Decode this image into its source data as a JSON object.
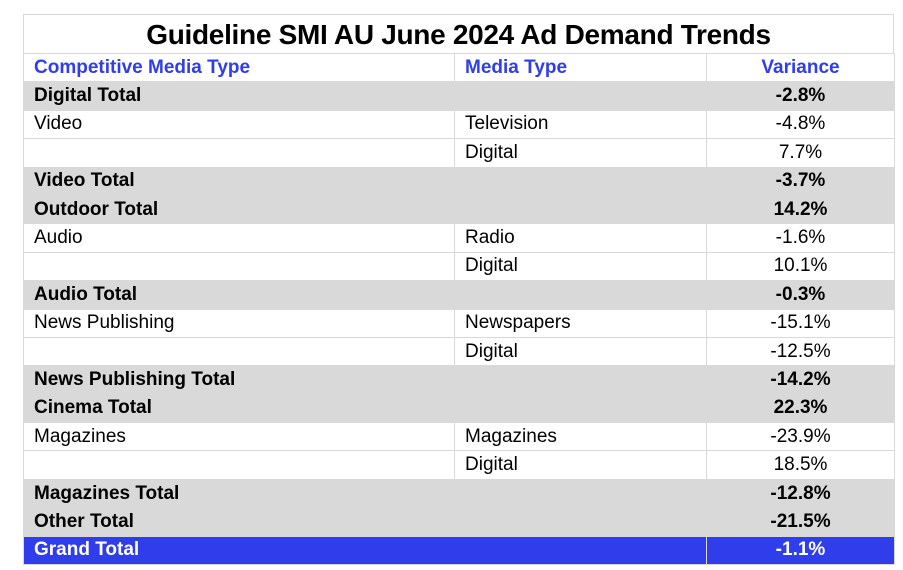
{
  "chart_data": {
    "type": "table",
    "title": "Guideline SMI AU June 2024 Ad Demand Trends",
    "columns": [
      "Competitive Media Type",
      "Media Type",
      "Variance"
    ],
    "rows": [
      {
        "kind": "total",
        "cmt": "Digital Total",
        "mt": "",
        "variance": "-2.8%"
      },
      {
        "kind": "row",
        "cmt": "Video",
        "mt": "Television",
        "variance": "-4.8%"
      },
      {
        "kind": "row",
        "cmt": "",
        "mt": "Digital",
        "variance": "7.7%"
      },
      {
        "kind": "total",
        "cmt": "Video Total",
        "mt": "",
        "variance": "-3.7%"
      },
      {
        "kind": "total",
        "cmt": "Outdoor Total",
        "mt": "",
        "variance": "14.2%"
      },
      {
        "kind": "row",
        "cmt": "Audio",
        "mt": "Radio",
        "variance": "-1.6%"
      },
      {
        "kind": "row",
        "cmt": "",
        "mt": "Digital",
        "variance": "10.1%"
      },
      {
        "kind": "total",
        "cmt": "Audio Total",
        "mt": "",
        "variance": "-0.3%"
      },
      {
        "kind": "row",
        "cmt": "News Publishing",
        "mt": "Newspapers",
        "variance": "-15.1%"
      },
      {
        "kind": "row",
        "cmt": "",
        "mt": "Digital",
        "variance": "-12.5%"
      },
      {
        "kind": "total",
        "cmt": "News Publishing Total",
        "mt": "",
        "variance": "-14.2%"
      },
      {
        "kind": "total",
        "cmt": "Cinema Total",
        "mt": "",
        "variance": "22.3%"
      },
      {
        "kind": "row",
        "cmt": "Magazines",
        "mt": "Magazines",
        "variance": "-23.9%"
      },
      {
        "kind": "row",
        "cmt": "",
        "mt": "Digital",
        "variance": "18.5%"
      },
      {
        "kind": "total",
        "cmt": "Magazines Total",
        "mt": "",
        "variance": "-12.8%"
      },
      {
        "kind": "total",
        "cmt": "Other Total",
        "mt": "",
        "variance": "-21.5%"
      },
      {
        "kind": "grand",
        "cmt": "Grand Total",
        "mt": "",
        "variance": "-1.1%"
      }
    ],
    "colors": {
      "header_text": "#2f3dea",
      "total_fill": "#d9d9d9",
      "grand_fill": "#2f3dea",
      "grand_text": "#ffffff"
    }
  }
}
